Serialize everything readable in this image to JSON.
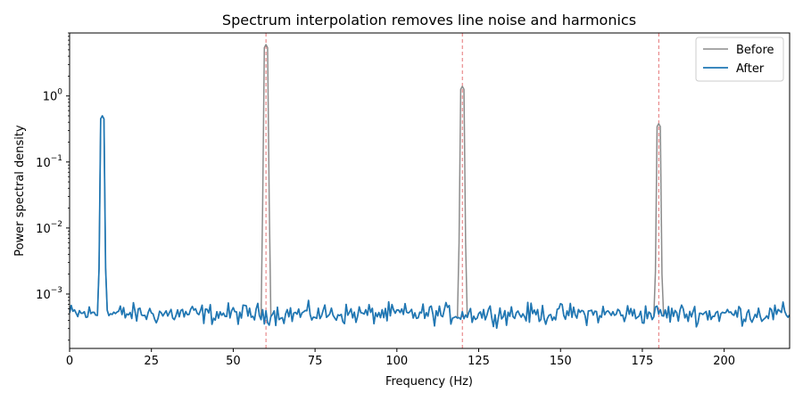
{
  "chart_data": {
    "type": "line",
    "title": "Spectrum interpolation removes line noise and harmonics",
    "xlabel": "Frequency (Hz)",
    "ylabel": "Power spectral density",
    "xlim": [
      0,
      220
    ],
    "ylim": [
      0.00015,
      9.0
    ],
    "yscale": "log",
    "xticks": [
      0,
      25,
      50,
      75,
      100,
      125,
      150,
      175,
      200
    ],
    "yticks": [
      {
        "value": 0.001,
        "base": "10",
        "exp": "−3"
      },
      {
        "value": 0.01,
        "base": "10",
        "exp": "−2"
      },
      {
        "value": 0.1,
        "base": "10",
        "exp": "−1"
      },
      {
        "value": 1,
        "base": "10",
        "exp": "0"
      }
    ],
    "grid": false,
    "legend": {
      "position": "top-right"
    },
    "vlines": [
      60,
      120,
      180
    ],
    "colors": {
      "before": "#8c8c8c",
      "after": "#1f77b4",
      "vline": "#d62728"
    },
    "series": [
      {
        "name": "Before",
        "peaks": [
          {
            "f": 10,
            "psd": 0.5
          },
          {
            "f": 60,
            "psd": 6.0
          },
          {
            "f": 120,
            "psd": 1.4
          },
          {
            "f": 180,
            "psd": 0.38
          }
        ]
      },
      {
        "name": "After",
        "peaks": [
          {
            "f": 10,
            "psd": 0.5
          }
        ]
      }
    ],
    "noise_floor": 0.0005,
    "resolution_hz": 0.5
  }
}
